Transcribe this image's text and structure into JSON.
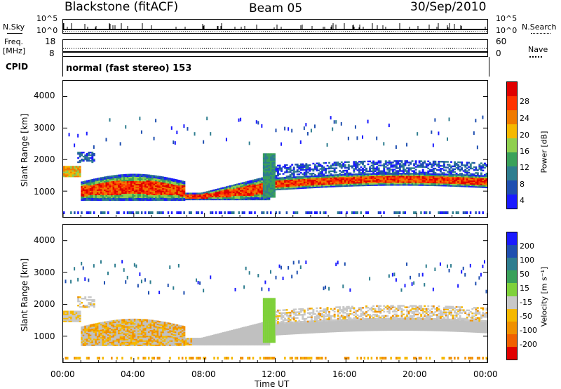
{
  "header": {
    "station": "Blackstone (fitACF)",
    "beam": "Beam 05",
    "date": "30/Sep/2010"
  },
  "info_panels": {
    "nsky_label": "N.Sky",
    "nsky_ticks": [
      "10^5",
      "10^0"
    ],
    "nsky_right_ticks": [
      "10^5",
      "10^0"
    ],
    "nsearch_label": "N.Search",
    "freq_label_line1": "Freq.",
    "freq_label_line2": "[MHz]",
    "freq_ticks": [
      "18",
      "8"
    ],
    "nave_ticks": [
      "60",
      "0"
    ],
    "nave_label": "Nave",
    "cpid_label": "CPID",
    "cpid_text": "normal (fast stereo) 153"
  },
  "colors": {
    "power_scale": [
      "#1a1aff",
      "#1f4fb0",
      "#2e7d8f",
      "#3aa15a",
      "#8fcf4f",
      "#f5b800",
      "#f07a00",
      "#ff3300",
      "#e00000"
    ],
    "velocity_scale": [
      "#1a1aff",
      "#1f4fb0",
      "#2e7d8f",
      "#3aa15a",
      "#7fd13a",
      "#c8c8c8",
      "#f5b800",
      "#f09000",
      "#f06000",
      "#e00000"
    ],
    "ground_scatter": "#c0c0c0"
  },
  "chart_data": [
    {
      "type": "heatmap",
      "title": "",
      "xlabel": "Time UT",
      "ylabel": "Slant Range [km]",
      "x_ticks": [
        "00:00",
        "04:00",
        "08:00",
        "12:00",
        "16:00",
        "20:00",
        "00:00"
      ],
      "y_ticks": [
        "1000",
        "2000",
        "3000",
        "4000"
      ],
      "ylim": [
        180,
        4500
      ],
      "colorbar_label": "Power [dB]",
      "colorbar_ticks": [
        "4",
        "8",
        "12",
        "16",
        "20",
        "24",
        "28"
      ],
      "colorbar_range": [
        0,
        30
      ]
    },
    {
      "type": "heatmap",
      "title": "",
      "xlabel": "Time UT",
      "ylabel": "Slant Range [km]",
      "x_ticks": [
        "00:00",
        "04:00",
        "08:00",
        "12:00",
        "16:00",
        "20:00",
        "00:00"
      ],
      "y_ticks": [
        "1000",
        "2000",
        "3000",
        "4000"
      ],
      "ylim": [
        180,
        4500
      ],
      "colorbar_label": "Velocity [m s⁻¹]",
      "colorbar_ticks": [
        "200",
        "100",
        "50",
        "15",
        "-15",
        "-50",
        "-100",
        "-200"
      ],
      "colorbar_range": [
        -250,
        250
      ]
    }
  ]
}
